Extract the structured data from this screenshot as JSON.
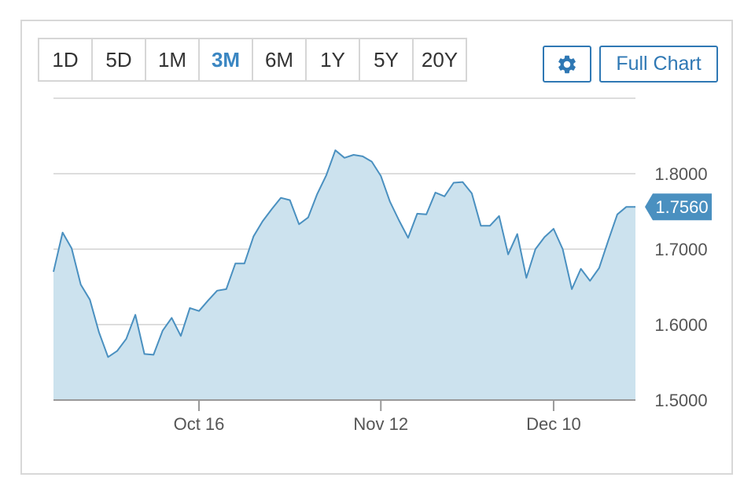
{
  "range_tabs": [
    {
      "label": "1D",
      "active": false
    },
    {
      "label": "5D",
      "active": false
    },
    {
      "label": "1M",
      "active": false
    },
    {
      "label": "3M",
      "active": true
    },
    {
      "label": "6M",
      "active": false
    },
    {
      "label": "1Y",
      "active": false
    },
    {
      "label": "5Y",
      "active": false
    },
    {
      "label": "20Y",
      "active": false
    }
  ],
  "toolbar": {
    "settings_icon": "gear-icon",
    "full_chart_label": "Full Chart"
  },
  "colors": {
    "accent": "#2f78b4",
    "line": "#4a90c0",
    "fill": "#cce2ee",
    "active_tab": "#3a86c2",
    "last_price_tag": "#4a90c0"
  },
  "chart_data": {
    "type": "area",
    "x_labels": [
      "Oct 16",
      "Nov 12",
      "Dec 10"
    ],
    "y_ticks": [
      "1.8000",
      "1.7000",
      "1.6000",
      "1.5000"
    ],
    "ylim": [
      1.5,
      1.9
    ],
    "last_value_label": "1.7560",
    "grid": true,
    "x_tick_index": {
      "Oct 16": 16,
      "Nov 12": 36,
      "Dec 10": 55
    },
    "values": [
      1.67,
      1.722,
      1.701,
      1.653,
      1.633,
      1.59,
      1.557,
      1.565,
      1.581,
      1.613,
      1.561,
      1.56,
      1.592,
      1.609,
      1.585,
      1.622,
      1.618,
      1.632,
      1.645,
      1.647,
      1.681,
      1.681,
      1.717,
      1.737,
      1.753,
      1.768,
      1.765,
      1.733,
      1.742,
      1.773,
      1.798,
      1.831,
      1.821,
      1.825,
      1.823,
      1.816,
      1.797,
      1.763,
      1.738,
      1.715,
      1.747,
      1.746,
      1.775,
      1.77,
      1.788,
      1.789,
      1.774,
      1.731,
      1.731,
      1.744,
      1.693,
      1.72,
      1.662,
      1.7,
      1.716,
      1.727,
      1.7,
      1.647,
      1.674,
      1.658,
      1.675,
      1.711,
      1.746,
      1.756,
      1.756
    ]
  }
}
